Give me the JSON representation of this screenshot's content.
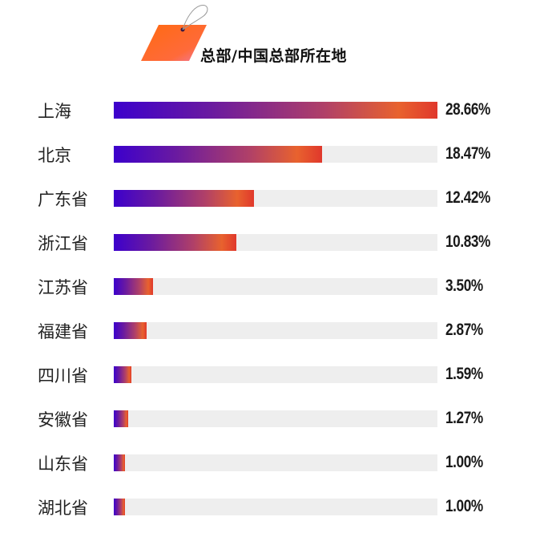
{
  "header": {
    "title": "总部/中国总部所在地",
    "icon": "price-tag-icon",
    "tag_color": "#ff6a1a"
  },
  "colors": {
    "gradient_start": "#3c00cc",
    "gradient_end": "#e0382c",
    "track": "#eeeeee",
    "text": "#1a1a1a"
  },
  "rows": [
    {
      "label": "上海",
      "value": "28.66%",
      "pct": 28.66
    },
    {
      "label": "北京",
      "value": "18.47%",
      "pct": 18.47
    },
    {
      "label": "广东省",
      "value": "12.42%",
      "pct": 12.42
    },
    {
      "label": "浙江省",
      "value": "10.83%",
      "pct": 10.83
    },
    {
      "label": "江苏省",
      "value": "3.50%",
      "pct": 3.5
    },
    {
      "label": "福建省",
      "value": "2.87%",
      "pct": 2.87
    },
    {
      "label": "四川省",
      "value": "1.59%",
      "pct": 1.59
    },
    {
      "label": "安徽省",
      "value": "1.27%",
      "pct": 1.27
    },
    {
      "label": "山东省",
      "value": "1.00%",
      "pct": 1.0
    },
    {
      "label": "湖北省",
      "value": "1.00%",
      "pct": 1.0
    }
  ],
  "chart_data": {
    "type": "bar",
    "orientation": "horizontal",
    "title": "总部/中国总部所在地",
    "categories": [
      "上海",
      "北京",
      "广东省",
      "浙江省",
      "江苏省",
      "福建省",
      "四川省",
      "安徽省",
      "山东省",
      "湖北省"
    ],
    "values": [
      28.66,
      18.47,
      12.42,
      10.83,
      3.5,
      2.87,
      1.59,
      1.27,
      1.0,
      1.0
    ],
    "value_labels": [
      "28.66%",
      "18.47%",
      "12.42%",
      "10.83%",
      "3.50%",
      "2.87%",
      "1.59%",
      "1.27%",
      "1.00%",
      "1.00%"
    ],
    "xlabel": "",
    "ylabel": "",
    "xlim": [
      0,
      28.66
    ],
    "grid": false,
    "legend": null,
    "unit": "%"
  }
}
